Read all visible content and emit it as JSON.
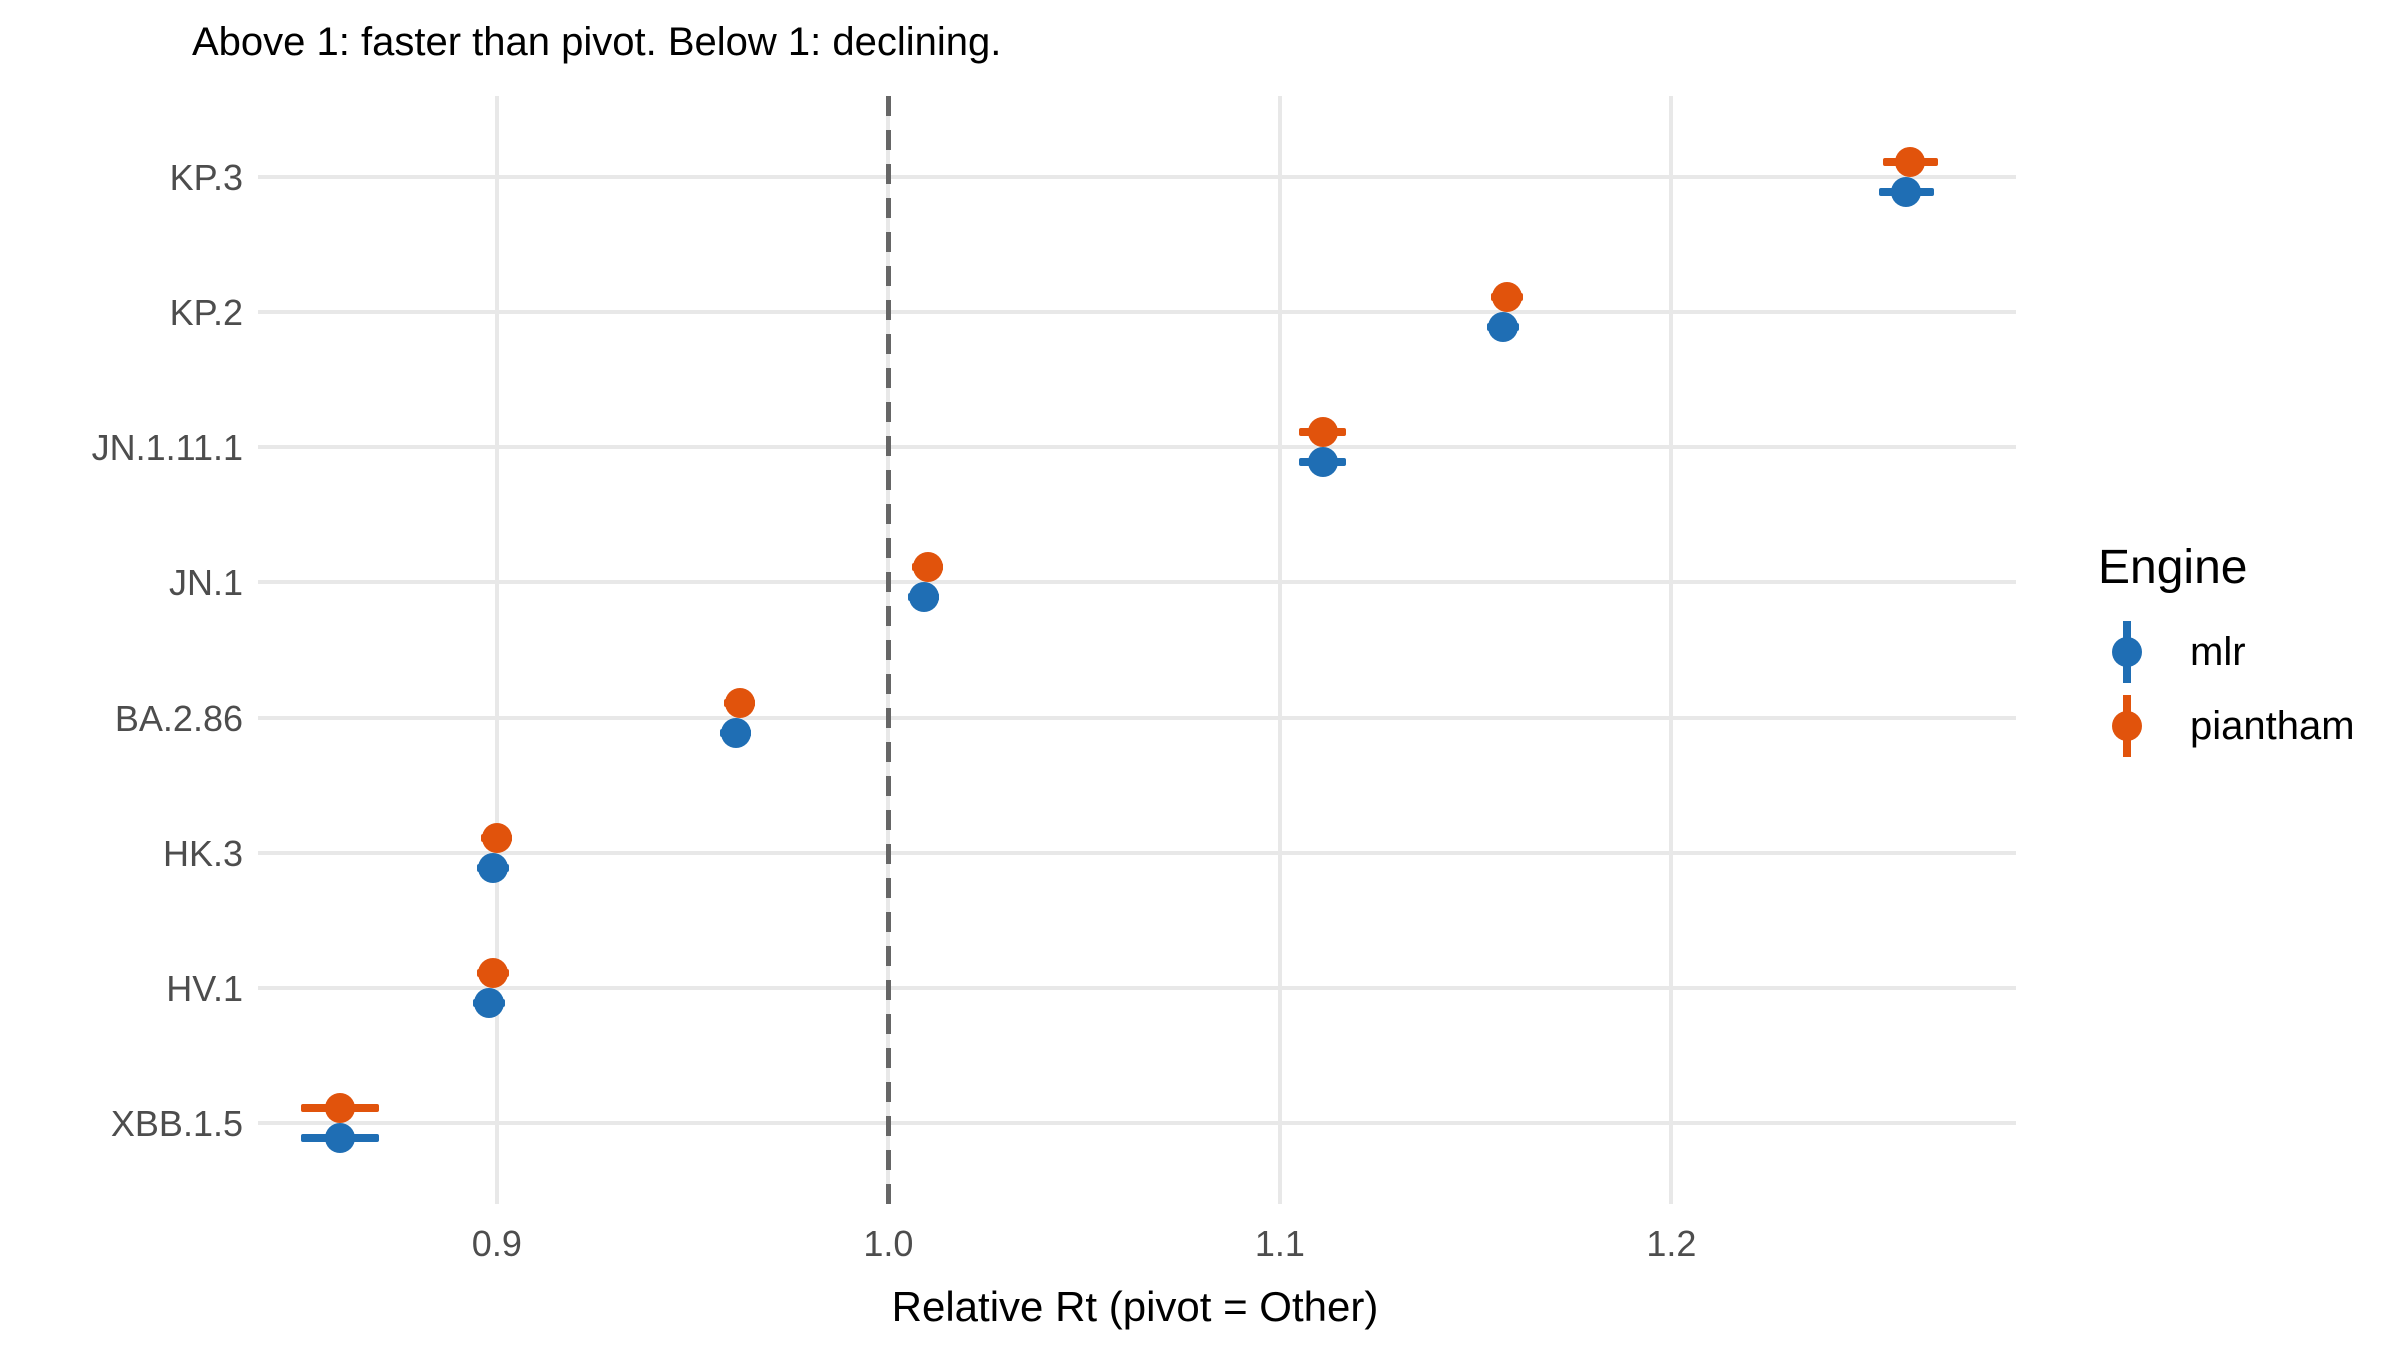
{
  "chart_data": {
    "type": "scatter",
    "subtype": "dot-plot-with-error-bars",
    "title": "Above 1: faster than pivot. Below 1: declining.",
    "xlabel": "Relative Rt (pivot = Other)",
    "ylabel": "",
    "legend_title": "Engine",
    "legend_position": "right",
    "grid": true,
    "background": "#ffffff",
    "reference_line_x": 1.0,
    "xlim": [
      0.839,
      1.288
    ],
    "x_ticks": [
      0.9,
      1.0,
      1.1,
      1.2
    ],
    "x_tick_labels": [
      "0.9",
      "1.0",
      "1.1",
      "1.2"
    ],
    "categories": [
      "KP.3",
      "KP.2",
      "JN.1.11.1",
      "JN.1",
      "BA.2.86",
      "HK.3",
      "HV.1",
      "XBB.1.5"
    ],
    "series": [
      {
        "name": "mlr",
        "color": "#1f6eb4",
        "values": [
          1.26,
          1.157,
          1.111,
          1.009,
          0.961,
          0.899,
          0.898,
          0.86
        ],
        "ci_lower": [
          1.253,
          1.153,
          1.105,
          1.005,
          0.957,
          0.895,
          0.894,
          0.85
        ],
        "ci_upper": [
          1.267,
          1.161,
          1.117,
          1.013,
          0.965,
          0.903,
          0.902,
          0.87
        ]
      },
      {
        "name": "piantham",
        "color": "#e1530c",
        "values": [
          1.261,
          1.158,
          1.111,
          1.01,
          0.962,
          0.9,
          0.899,
          0.86
        ],
        "ci_lower": [
          1.254,
          1.154,
          1.105,
          1.006,
          0.958,
          0.896,
          0.895,
          0.85
        ],
        "ci_upper": [
          1.268,
          1.162,
          1.117,
          1.014,
          0.966,
          0.904,
          0.903,
          0.87
        ]
      }
    ],
    "colors": {
      "grid": "#e8e8e8",
      "reference_line": "#666666",
      "axis_text": "#4d4d4d",
      "title_text": "#000000"
    }
  }
}
